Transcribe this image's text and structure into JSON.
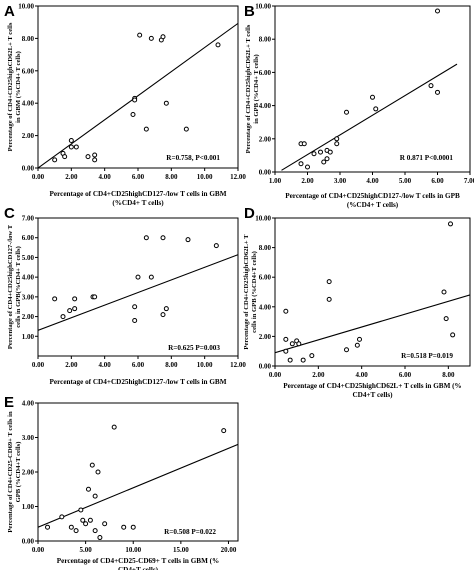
{
  "chart_data": [
    {
      "type": "scatter",
      "panel_label": "A",
      "xlabel": "Percentage of CD4+CD25highCD127-/low T cells in GBM",
      "xlabel2": "(%CD4+ T cells)",
      "ylabel": "Percentage of CD4+CD25highCD62L+ T cells",
      "ylabel2": "in GBM (%CD4+ T cells)",
      "stat_text": "R=0.758, P<0.001",
      "xlim": [
        0,
        12
      ],
      "ylim": [
        0,
        10
      ],
      "x_ticks": [
        "0.00",
        "2.00",
        "4.00",
        "6.00",
        "8.00",
        "10.00",
        "12.00"
      ],
      "y_ticks": [
        "0.00",
        "2.00",
        "4.00",
        "6.00",
        "8.00",
        "10.00"
      ],
      "points": [
        [
          1.0,
          0.5
        ],
        [
          1.5,
          0.9
        ],
        [
          1.6,
          0.7
        ],
        [
          2.0,
          1.7
        ],
        [
          2.0,
          1.3
        ],
        [
          2.3,
          1.3
        ],
        [
          3.0,
          0.7
        ],
        [
          3.4,
          0.5
        ],
        [
          3.4,
          0.8
        ],
        [
          5.7,
          3.3
        ],
        [
          5.8,
          4.3
        ],
        [
          5.8,
          4.2
        ],
        [
          6.1,
          8.2
        ],
        [
          6.5,
          2.4
        ],
        [
          6.8,
          8.0
        ],
        [
          7.4,
          7.9
        ],
        [
          7.5,
          8.1
        ],
        [
          7.7,
          4.0
        ],
        [
          8.9,
          2.4
        ],
        [
          10.8,
          7.6
        ]
      ],
      "fit_line": [
        [
          0.0,
          0.0
        ],
        [
          12.5,
          9.3
        ]
      ]
    },
    {
      "type": "scatter",
      "panel_label": "B",
      "xlabel": "Percentage of CD4+CD25highCD127-/low T cells in GPB",
      "xlabel2": "(%CD4+ T cells)",
      "ylabel": "Percentage of CD4+CD25highCD62L+ T cells",
      "ylabel2": "in GPB (%CD4+ T cells)",
      "stat_text": "R 0.871 P<0.0001",
      "xlim": [
        1,
        7
      ],
      "ylim": [
        0,
        10
      ],
      "x_ticks": [
        "1.00",
        "2.00",
        "3.00",
        "4.00",
        "5.00",
        "6.00",
        "7.00"
      ],
      "y_ticks": [
        "0.00",
        "2.00",
        "4.00",
        "6.00",
        "8.00",
        "10.00"
      ],
      "points": [
        [
          1.8,
          0.5
        ],
        [
          1.8,
          1.7
        ],
        [
          1.9,
          1.7
        ],
        [
          2.0,
          0.3
        ],
        [
          2.2,
          1.1
        ],
        [
          2.4,
          1.2
        ],
        [
          2.5,
          0.6
        ],
        [
          2.6,
          1.3
        ],
        [
          2.6,
          0.8
        ],
        [
          2.7,
          1.2
        ],
        [
          2.9,
          1.7
        ],
        [
          2.9,
          2.0
        ],
        [
          3.2,
          3.6
        ],
        [
          4.0,
          4.5
        ],
        [
          4.1,
          3.8
        ],
        [
          5.8,
          5.2
        ],
        [
          6.0,
          9.7
        ],
        [
          6.0,
          4.8
        ]
      ],
      "fit_line": [
        [
          1.2,
          0.1
        ],
        [
          6.6,
          6.5
        ]
      ]
    },
    {
      "type": "scatter",
      "panel_label": "C",
      "xlabel": "Percentage of CD4+CD25highCD127-/low T cells in GBM",
      "xlabel2": "",
      "ylabel": "Percentage of CD4+CD25highCD127-/low T",
      "ylabel2": "cells in GPB(%CD4+ T cells)",
      "stat_text": "R=0.625 P=0.003",
      "xlim": [
        0,
        12
      ],
      "ylim": [
        0,
        7
      ],
      "x_ticks": [
        "0.00",
        "2.00",
        "4.00",
        "6.00",
        "8.00",
        "10.00",
        "12.00"
      ],
      "y_ticks": [
        "1.00",
        "2.00",
        "3.00",
        "4.00",
        "5.00",
        "6.00",
        "7.00"
      ],
      "points": [
        [
          1.0,
          2.9
        ],
        [
          1.5,
          2.0
        ],
        [
          1.9,
          2.3
        ],
        [
          2.2,
          2.9
        ],
        [
          2.2,
          2.4
        ],
        [
          3.3,
          3.0
        ],
        [
          3.4,
          3.0
        ],
        [
          5.8,
          2.5
        ],
        [
          5.8,
          1.8
        ],
        [
          6.0,
          4.0
        ],
        [
          6.5,
          6.0
        ],
        [
          6.8,
          4.0
        ],
        [
          7.5,
          6.0
        ],
        [
          7.5,
          2.1
        ],
        [
          7.7,
          2.4
        ],
        [
          9.0,
          5.9
        ],
        [
          10.7,
          5.6
        ]
      ],
      "fit_line": [
        [
          0.0,
          1.3
        ],
        [
          12.5,
          5.3
        ]
      ]
    },
    {
      "type": "scatter",
      "panel_label": "D",
      "xlabel": "Percentage of CD4+CD25highCD62L+ T cells in GBM (%",
      "xlabel2": "CD4+T cells)",
      "ylabel": "Percentage of CD4+CD25highCD62L+ T",
      "ylabel2": "cells in GPB (%CD4+T cells)",
      "stat_text": "R=0.518 P=0.019",
      "xlim": [
        0,
        9
      ],
      "ylim": [
        0,
        10
      ],
      "x_ticks": [
        "0.00",
        "2.00",
        "4.00",
        "6.00",
        "8.00"
      ],
      "y_ticks": [
        "0.00",
        "2.00",
        "4.00",
        "6.00",
        "8.00",
        "10.00"
      ],
      "points": [
        [
          0.5,
          1.0
        ],
        [
          0.5,
          3.7
        ],
        [
          0.5,
          1.8
        ],
        [
          0.7,
          0.4
        ],
        [
          0.8,
          1.5
        ],
        [
          1.0,
          1.7
        ],
        [
          1.1,
          1.5
        ],
        [
          1.3,
          0.4
        ],
        [
          1.7,
          0.7
        ],
        [
          2.5,
          5.7
        ],
        [
          2.5,
          4.5
        ],
        [
          3.3,
          1.1
        ],
        [
          3.8,
          1.4
        ],
        [
          3.9,
          1.8
        ],
        [
          7.8,
          5.0
        ],
        [
          7.9,
          3.2
        ],
        [
          8.1,
          9.6
        ],
        [
          8.2,
          2.1
        ]
      ],
      "fit_line": [
        [
          0.0,
          0.9
        ],
        [
          9.0,
          4.8
        ]
      ]
    },
    {
      "type": "scatter",
      "panel_label": "E",
      "xlabel": "Percentage of CD4+CD25-CD69+ T cells in GBM (%",
      "xlabel2": "CD4+T cells)",
      "ylabel": "Percentage of CD4+CD25-CD69+ T cells in",
      "ylabel2": "GPB (%CD4+T cells)",
      "stat_text": "R=0.508 P=0.022",
      "xlim": [
        0,
        21
      ],
      "ylim": [
        0,
        4
      ],
      "x_ticks": [
        "0.00",
        "5.00",
        "10.00",
        "15.00",
        "20.00"
      ],
      "y_ticks": [
        "0.00",
        "1.00",
        "2.00",
        "3.00",
        "4.00"
      ],
      "points": [
        [
          1.0,
          0.4
        ],
        [
          2.5,
          0.7
        ],
        [
          3.5,
          0.4
        ],
        [
          4.0,
          0.3
        ],
        [
          4.5,
          0.9
        ],
        [
          4.7,
          0.6
        ],
        [
          5.0,
          0.5
        ],
        [
          5.3,
          1.5
        ],
        [
          5.5,
          0.6
        ],
        [
          5.7,
          2.2
        ],
        [
          6.0,
          1.3
        ],
        [
          6.0,
          0.3
        ],
        [
          6.3,
          2.0
        ],
        [
          6.5,
          0.1
        ],
        [
          7.0,
          0.5
        ],
        [
          8.0,
          3.3
        ],
        [
          9.0,
          0.4
        ],
        [
          10.0,
          0.4
        ],
        [
          19.5,
          3.2
        ]
      ],
      "fit_line": [
        [
          0.0,
          0.4
        ],
        [
          21.0,
          2.8
        ]
      ]
    }
  ]
}
